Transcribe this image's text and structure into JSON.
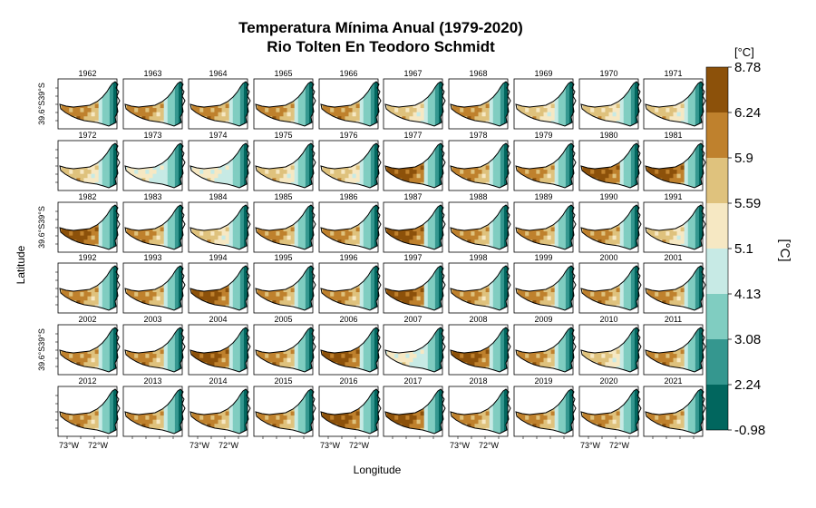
{
  "title": {
    "line1": "Temperatura Mínima Anual (1979-2020)",
    "line2": "Rio Tolten En Teodoro Schmidt"
  },
  "axes": {
    "xlabel": "Longitude",
    "ylabel": "Latitude",
    "x_ticks": [
      "73°W",
      "72°W"
    ],
    "y_ticks": [
      "39.6°S",
      "39°S"
    ]
  },
  "years": [
    "1962",
    "1963",
    "1964",
    "1965",
    "1966",
    "1967",
    "1968",
    "1969",
    "1970",
    "1971",
    "1972",
    "1973",
    "1974",
    "1975",
    "1976",
    "1977",
    "1978",
    "1979",
    "1980",
    "1981",
    "1982",
    "1983",
    "1984",
    "1985",
    "1986",
    "1987",
    "1988",
    "1989",
    "1990",
    "1991",
    "1992",
    "1993",
    "1994",
    "1995",
    "1996",
    "1997",
    "1998",
    "1999",
    "2000",
    "2001",
    "2002",
    "2003",
    "2004",
    "2005",
    "2006",
    "2007",
    "2008",
    "2009",
    "2010",
    "2011",
    "2012",
    "2013",
    "2014",
    "2015",
    "2016",
    "2017",
    "2018",
    "2019",
    "2020",
    "2021"
  ],
  "year_warmth": [
    2,
    2,
    2,
    2,
    2,
    1,
    2,
    1,
    1,
    1,
    1,
    0,
    0,
    1,
    1,
    3,
    2,
    2,
    3,
    3,
    3,
    2,
    1,
    2,
    2,
    3,
    2,
    2,
    2,
    1,
    2,
    2,
    3,
    2,
    2,
    3,
    2,
    2,
    2,
    2,
    2,
    2,
    3,
    2,
    3,
    0,
    3,
    2,
    1,
    2,
    2,
    2,
    2,
    2,
    3,
    3,
    2,
    2,
    2,
    2
  ],
  "colorbar": {
    "unit_label": "[°C]",
    "side_label": "[°C]",
    "labels": [
      "8.78",
      "6.24",
      "5.9",
      "5.59",
      "5.1",
      "4.13",
      "3.08",
      "2.24",
      "-0.98"
    ],
    "colors": [
      "#8C510A",
      "#BF812D",
      "#DFC27D",
      "#F6E8C3",
      "#C7EAE5",
      "#80CDC1",
      "#35978F",
      "#01665E"
    ]
  }
}
